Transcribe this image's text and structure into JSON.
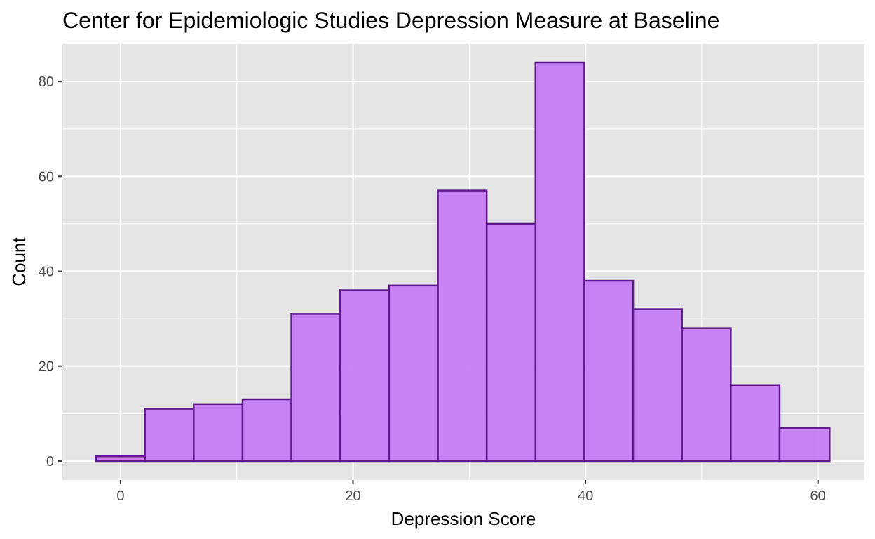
{
  "chart_data": {
    "type": "bar",
    "subtype": "histogram",
    "title": "Center for Epidemiologic Studies Depression Measure at Baseline",
    "xlabel": "Depression Score",
    "ylabel": "Count",
    "xlim": [
      -5,
      64
    ],
    "ylim": [
      -4,
      88
    ],
    "x_ticks": [
      0,
      20,
      40,
      60
    ],
    "y_ticks": [
      0,
      20,
      40,
      60,
      80
    ],
    "grid": true,
    "bin_edges": [
      -2.1,
      2.1,
      6.3,
      10.5,
      14.7,
      18.9,
      23.1,
      27.3,
      31.5,
      35.7,
      39.9,
      44.1,
      48.3,
      52.5,
      56.7,
      61.0
    ],
    "values": [
      1,
      11,
      12,
      13,
      31,
      36,
      37,
      57,
      50,
      84,
      38,
      32,
      28,
      16,
      7
    ],
    "bar_fill": "#C77CF2",
    "bar_outline": "#5E1A8A",
    "panel_background": "#E5E5E5",
    "gridline_color": "#FFFFFF"
  }
}
